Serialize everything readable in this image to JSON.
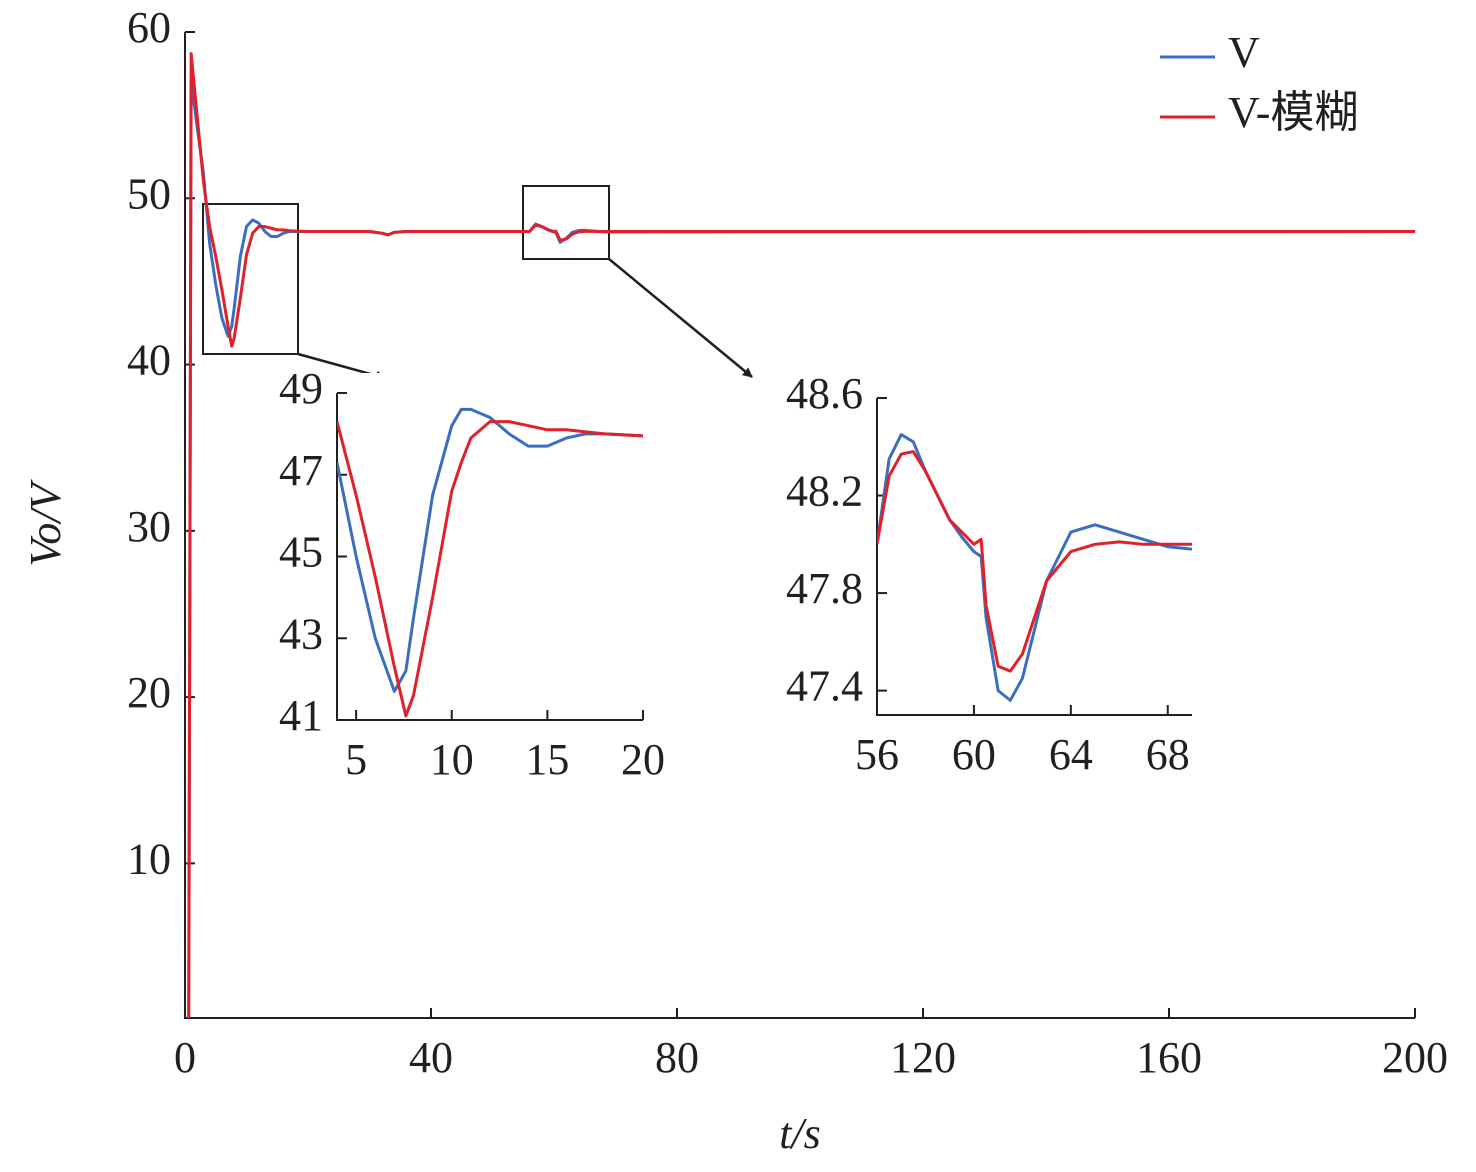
{
  "chart_data": [
    {
      "type": "line",
      "xlabel": "t/s",
      "ylabel": "Vo/V",
      "legend": "upper right",
      "x": [
        0.6,
        1,
        3,
        4,
        5,
        6,
        7,
        7.6,
        8,
        9,
        10,
        11,
        12,
        13,
        14,
        15,
        16,
        17,
        20,
        30,
        32,
        33,
        34,
        36,
        56,
        57,
        58,
        59,
        60,
        60.3,
        61,
        62,
        63,
        64,
        65,
        66,
        68,
        200
      ],
      "series": [
        {
          "name": "V",
          "color": "#3a6fbf",
          "values": [
            0,
            57,
            51.5,
            47.3,
            44.8,
            42.8,
            41.7,
            42.3,
            43.4,
            46.5,
            48.3,
            48.7,
            48.5,
            48.0,
            47.7,
            47.7,
            47.9,
            48.0,
            48.0,
            48.0,
            47.9,
            47.8,
            47.95,
            48.0,
            48.0,
            48.45,
            48.3,
            48.1,
            47.97,
            47.95,
            47.35,
            47.6,
            47.95,
            48.06,
            48.08,
            48.04,
            47.98,
            48.0
          ]
        },
        {
          "name": "V-模糊",
          "color": "#e0202a",
          "values": [
            0,
            58.7,
            51,
            48.3,
            46.5,
            44.5,
            42.3,
            41.1,
            41.6,
            44.0,
            46.6,
            47.9,
            48.3,
            48.3,
            48.2,
            48.1,
            48.1,
            48.05,
            48.0,
            48.0,
            47.9,
            47.8,
            47.95,
            48.0,
            48.0,
            48.38,
            48.3,
            48.12,
            48.0,
            48.02,
            47.47,
            47.55,
            47.85,
            47.98,
            48.01,
            48.01,
            48.0,
            48.0
          ]
        }
      ],
      "xlim": [
        0,
        200
      ],
      "xticks": [
        0,
        40,
        80,
        120,
        160,
        200
      ],
      "ylim": [
        0.7,
        60
      ],
      "yticks": [
        10,
        20,
        30,
        40,
        50,
        60
      ]
    },
    {
      "type": "line",
      "x": [
        4,
        5,
        6,
        7,
        7.6,
        8,
        9,
        10,
        10.5,
        11,
        12,
        13,
        14,
        15,
        16,
        17,
        18,
        20
      ],
      "series": [
        {
          "name": "V",
          "color": "#3a6fbf",
          "values": [
            47.3,
            45,
            43,
            41.7,
            42.2,
            43.5,
            46.5,
            48.2,
            48.6,
            48.6,
            48.4,
            48.0,
            47.7,
            47.7,
            47.9,
            48.0,
            48.0,
            47.95
          ]
        },
        {
          "name": "V-模糊",
          "color": "#e0202a",
          "values": [
            48.3,
            46.5,
            44.5,
            42.3,
            41.1,
            41.6,
            44,
            46.6,
            47.3,
            47.9,
            48.3,
            48.3,
            48.2,
            48.1,
            48.1,
            48.05,
            48.0,
            47.95
          ]
        }
      ],
      "xlim": [
        4,
        20
      ],
      "xticks": [
        5,
        10,
        15,
        20
      ],
      "ylim": [
        41,
        49
      ],
      "yticks": [
        41,
        43,
        45,
        47,
        49
      ]
    },
    {
      "type": "line",
      "x": [
        56,
        56.5,
        57,
        57.5,
        58,
        58.5,
        59,
        59.5,
        60,
        60.3,
        60.5,
        61,
        61.5,
        62,
        62.5,
        63,
        64,
        65,
        66,
        67,
        68,
        69
      ],
      "series": [
        {
          "name": "V",
          "color": "#3a6fbf",
          "values": [
            48.0,
            48.35,
            48.45,
            48.42,
            48.3,
            48.2,
            48.1,
            48.03,
            47.97,
            47.95,
            47.7,
            47.4,
            47.36,
            47.45,
            47.65,
            47.85,
            48.05,
            48.08,
            48.05,
            48.02,
            47.99,
            47.98
          ]
        },
        {
          "name": "V-模糊",
          "color": "#e0202a",
          "values": [
            48.0,
            48.28,
            48.37,
            48.38,
            48.3,
            48.2,
            48.1,
            48.05,
            48.0,
            48.02,
            47.75,
            47.5,
            47.48,
            47.55,
            47.7,
            47.85,
            47.97,
            48.0,
            48.01,
            48.0,
            48.0,
            48.0
          ]
        }
      ],
      "xlim": [
        56,
        69
      ],
      "xticks": [
        56,
        60,
        64,
        68
      ],
      "ylim": [
        47.3,
        48.6
      ],
      "yticks": [
        47.4,
        47.8,
        48.2,
        48.6
      ]
    }
  ]
}
